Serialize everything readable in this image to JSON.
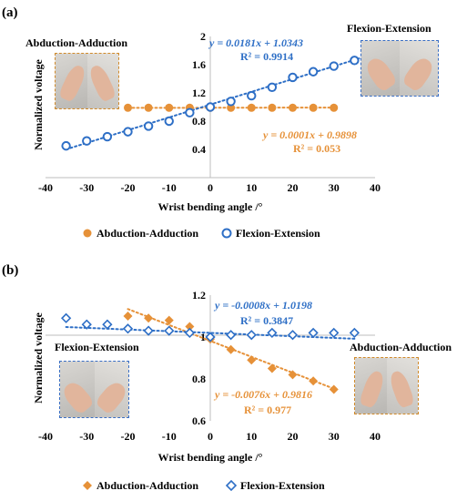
{
  "panels": {
    "a": {
      "label": "(a)",
      "left_corner_label": "Abduction-Adduction",
      "right_corner_label": "Flexion-Extension",
      "eq_blue_1": "y = 0.0181x + 1.0343",
      "eq_blue_2": "R² = 0.9914",
      "eq_orange_1": "y = 0.0001x + 0.9898",
      "eq_orange_2": "R² = 0.053",
      "legend_orange": "Abduction-Adduction",
      "legend_blue": "Flexion-Extension",
      "photo_left_border": "#d08a2a",
      "photo_right_border": "#3a6fc4"
    },
    "b": {
      "label": "(b)",
      "left_corner_label": "Flexion-Extension",
      "right_corner_label": "Abduction-Adduction",
      "eq_blue_1": "y = -0.0008x + 1.0198",
      "eq_blue_2": "R² = 0.3847",
      "eq_orange_1": "y = -0.0076x + 0.9816",
      "eq_orange_2": "R² = 0.977",
      "legend_orange": "Abduction-Adduction",
      "legend_blue": "Flexion-Extension",
      "photo_left_border": "#3a6fc4",
      "photo_right_border": "#d08a2a"
    }
  },
  "colors": {
    "orange": "#E69138",
    "blue": "#2E6FC6",
    "eq_orange": "#E69138",
    "eq_blue": "#2E6FC6"
  },
  "chart_data": [
    {
      "type": "scatter",
      "title": "",
      "xlabel": "Wrist bending angle /°",
      "ylabel": "Normalized voltage",
      "xlim": [
        -40,
        40
      ],
      "ylim": [
        0,
        2
      ],
      "xticks": [
        "-40",
        "-30",
        "-20",
        "-10",
        "0",
        "10",
        "20",
        "30",
        "40"
      ],
      "yticks": [
        "0.4",
        "0.8",
        "1.2",
        "1.6",
        "2"
      ],
      "legend": "bottom",
      "series": [
        {
          "name": "Abduction-Adduction",
          "marker": "circle-filled",
          "color": "#E69138",
          "x": [
            -20,
            -15,
            -10,
            -5,
            0,
            5,
            10,
            15,
            20,
            25,
            30
          ],
          "y": [
            0.99,
            0.99,
            0.99,
            0.99,
            0.99,
            0.99,
            0.99,
            0.99,
            0.99,
            0.99,
            0.99
          ],
          "trend_x": [
            -20,
            30
          ],
          "trend_slope": 0.0001,
          "trend_intercept": 0.9898
        },
        {
          "name": "Flexion-Extension",
          "marker": "circle-open",
          "color": "#2E6FC6",
          "x": [
            -35,
            -30,
            -25,
            -20,
            -15,
            -10,
            -5,
            0,
            5,
            10,
            15,
            20,
            25,
            30,
            35
          ],
          "y": [
            0.45,
            0.52,
            0.58,
            0.65,
            0.73,
            0.8,
            0.92,
            1.0,
            1.08,
            1.16,
            1.28,
            1.42,
            1.5,
            1.58,
            1.66
          ],
          "trend_x": [
            -35,
            40
          ],
          "trend_slope": 0.0181,
          "trend_intercept": 1.0343
        }
      ]
    },
    {
      "type": "scatter",
      "title": "",
      "xlabel": "Wrist bending angle /°",
      "ylabel": "Normalized voltage",
      "xlim": [
        -40,
        40
      ],
      "ylim": [
        0.6,
        1.2
      ],
      "xticks": [
        "-40",
        "-30",
        "-20",
        "-10",
        "0",
        "10",
        "20",
        "30",
        "40"
      ],
      "yticks": [
        "0.6",
        "0.8",
        "1",
        "1.2"
      ],
      "legend": "bottom",
      "series": [
        {
          "name": "Abduction-Adduction",
          "marker": "diamond-filled",
          "color": "#E69138",
          "x": [
            -20,
            -15,
            -10,
            -5,
            0,
            5,
            10,
            15,
            20,
            25,
            30
          ],
          "y": [
            1.1,
            1.09,
            1.08,
            1.05,
            0.99,
            0.94,
            0.89,
            0.85,
            0.82,
            0.79,
            0.75
          ],
          "trend_x": [
            -20,
            30
          ],
          "trend_slope": -0.0076,
          "trend_intercept": 0.9816
        },
        {
          "name": "Flexion-Extension",
          "marker": "diamond-open",
          "color": "#2E6FC6",
          "x": [
            -35,
            -30,
            -25,
            -20,
            -15,
            -10,
            -5,
            0,
            5,
            10,
            15,
            20,
            25,
            30,
            35
          ],
          "y": [
            1.09,
            1.06,
            1.06,
            1.04,
            1.03,
            1.03,
            1.02,
            1.0,
            1.01,
            1.01,
            1.02,
            1.01,
            1.02,
            1.02,
            1.02
          ],
          "trend_x": [
            -35,
            35
          ],
          "trend_slope": -0.0008,
          "trend_intercept": 1.0198
        }
      ]
    }
  ]
}
